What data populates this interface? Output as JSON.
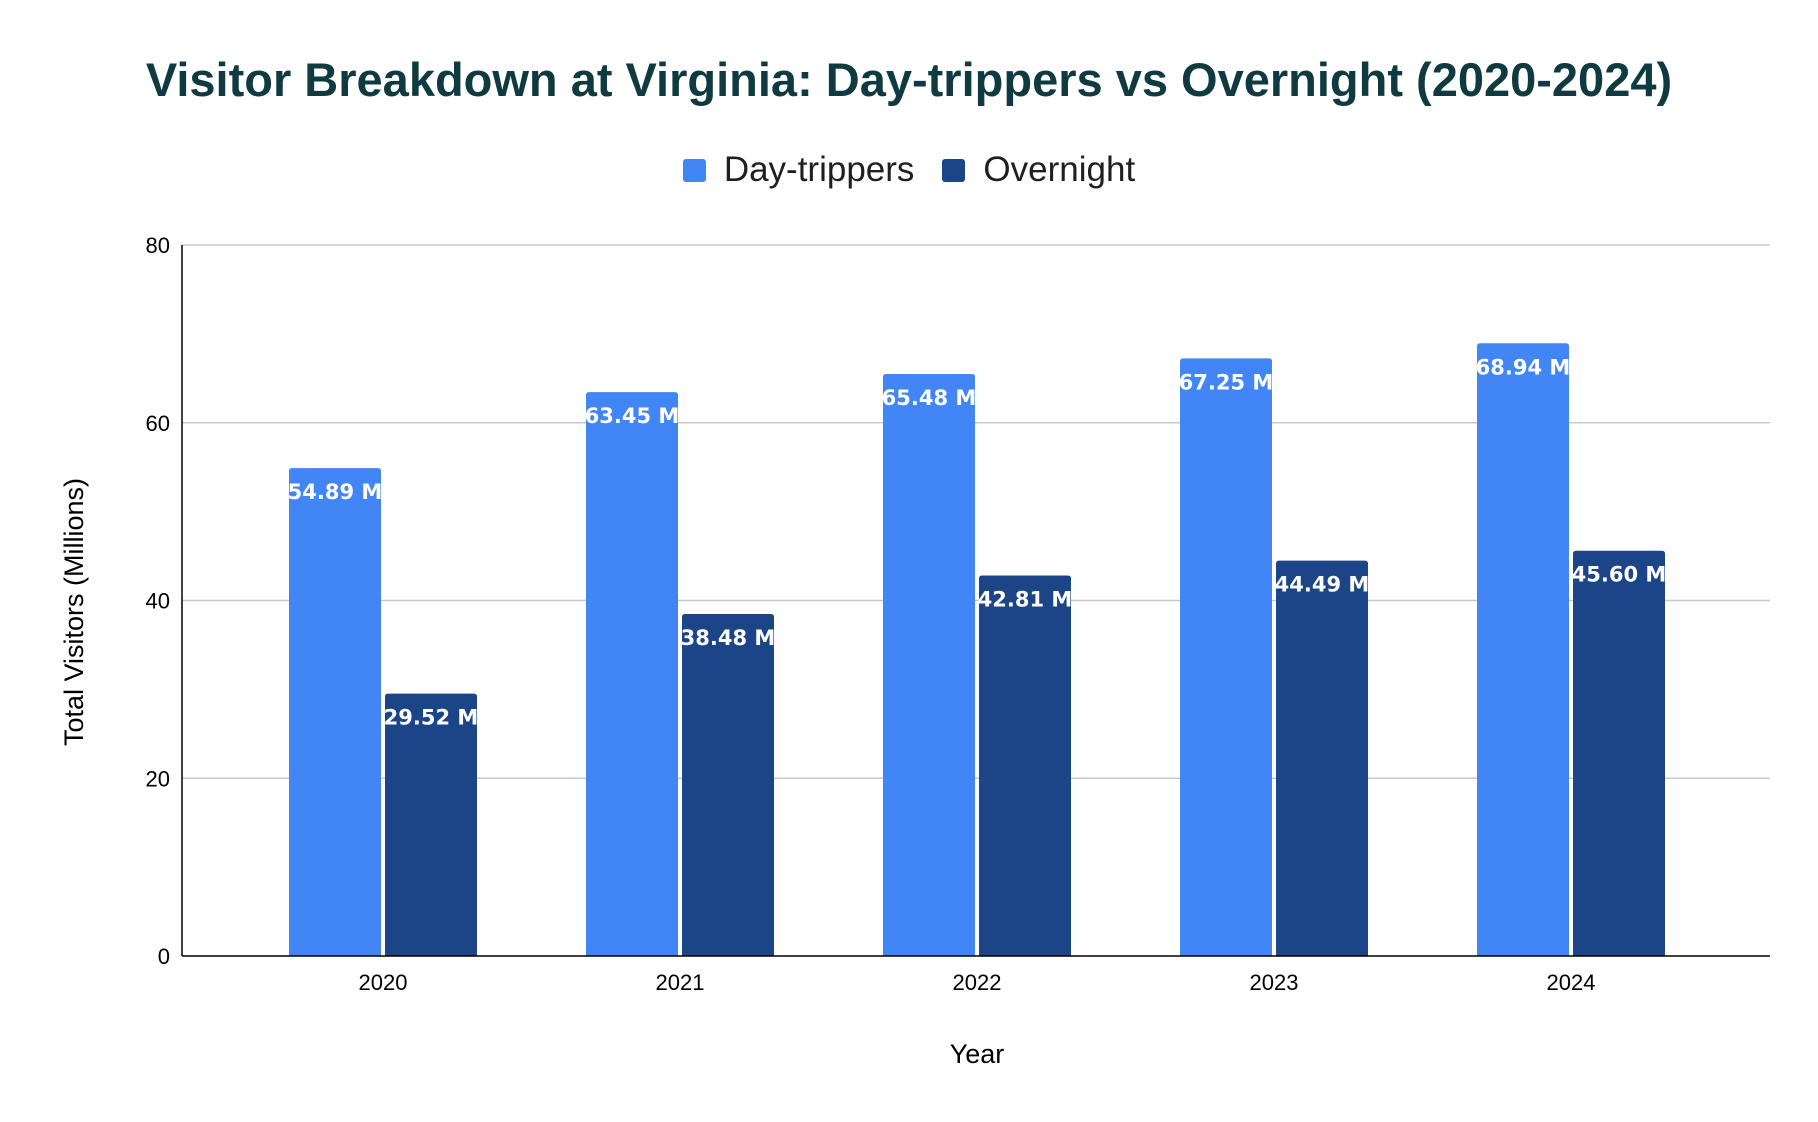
{
  "title": "Visitor Breakdown at Virginia: Day-trippers vs Overnight (2020-2024)",
  "legend": [
    {
      "name": "Day-trippers",
      "color": "#4285f4"
    },
    {
      "name": "Overnight",
      "color": "#1c4587"
    }
  ],
  "chart_data": {
    "type": "bar",
    "title": "Visitor Breakdown at Virginia: Day-trippers vs Overnight (2020-2024)",
    "categories": [
      "2020",
      "2021",
      "2022",
      "2023",
      "2024"
    ],
    "series": [
      {
        "name": "Day-trippers",
        "color": "#4285f4",
        "values": [
          54.89,
          63.45,
          65.48,
          67.25,
          68.94
        ],
        "labels": [
          "54.89 M",
          "63.45 M",
          "65.48 M",
          "67.25 M",
          "68.94 M"
        ]
      },
      {
        "name": "Overnight",
        "color": "#1c4587",
        "values": [
          29.52,
          38.48,
          42.81,
          44.49,
          45.6
        ],
        "labels": [
          "29.52 M",
          "38.48 M",
          "42.81 M",
          "44.49 M",
          "45.60 M"
        ]
      }
    ],
    "xlabel": "Year",
    "ylabel": "Total Visitors (Millions)",
    "ylim": [
      0,
      80
    ],
    "yticks": [
      "0",
      "20",
      "40",
      "60",
      "80"
    ],
    "grid": true,
    "legend_position": "top"
  }
}
